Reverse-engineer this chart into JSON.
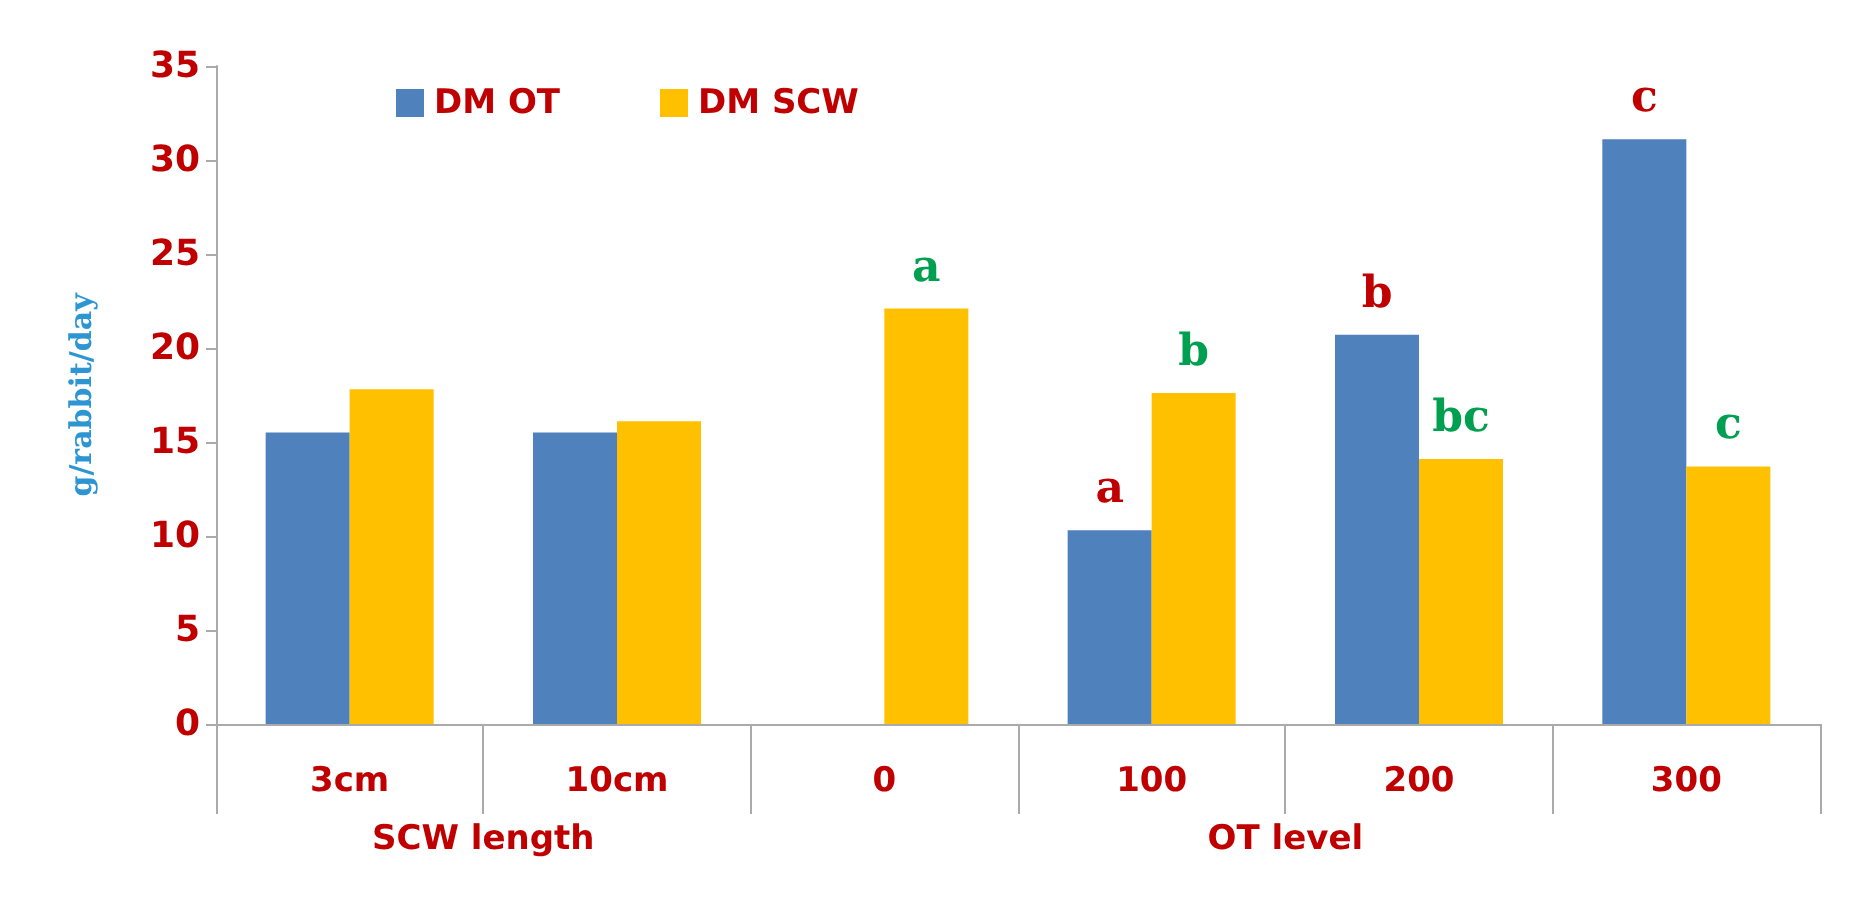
{
  "chart_data": {
    "type": "bar",
    "ylabel": "g/rabbit/day",
    "categories": [
      "3cm",
      "10cm",
      "0",
      "100",
      "200",
      "300"
    ],
    "series": [
      {
        "name": "DM OT",
        "color": "#4f81bd",
        "values": [
          15.5,
          15.5,
          null,
          10.3,
          20.7,
          31.1
        ]
      },
      {
        "name": "DM SCW",
        "color": "#ffc000",
        "values": [
          17.8,
          16.1,
          22.1,
          17.6,
          14.1,
          13.7
        ]
      }
    ],
    "ylim": [
      0,
      35
    ],
    "yticks": [
      0,
      5,
      10,
      15,
      20,
      25,
      30,
      35
    ],
    "grid": false,
    "legend": "top left",
    "annotations": [
      {
        "text": "a",
        "x": "0",
        "y": 22.1
      },
      {
        "text": "a",
        "x": "100",
        "y": 10.3
      },
      {
        "text": "b",
        "x": "100",
        "y": 17.6
      },
      {
        "text": "b",
        "x": "200",
        "y": 20.7
      },
      {
        "text": "bc",
        "x": "200",
        "y": 14.1
      },
      {
        "text": "c",
        "x": "300",
        "y": 31.1
      },
      {
        "text": "c",
        "x": "300",
        "y": 13.7
      },
      "SCW length",
      "OT level"
    ]
  }
}
